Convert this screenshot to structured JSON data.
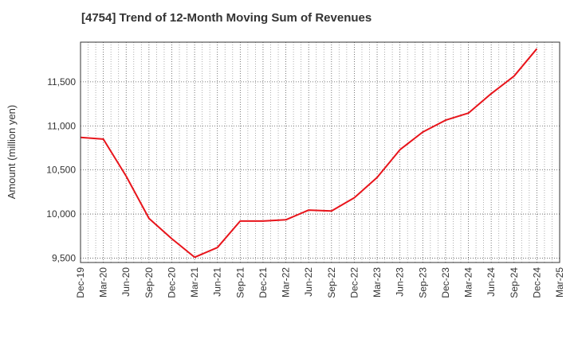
{
  "chart_data": {
    "type": "line",
    "title": "[4754]  Trend of 12-Month Moving Sum of Revenues",
    "ylabel": "Amount (million yen)",
    "xlabel": "",
    "x_ticks": [
      "Dec-19",
      "Mar-20",
      "Jun-20",
      "Sep-20",
      "Dec-20",
      "Mar-21",
      "Jun-21",
      "Sep-21",
      "Dec-21",
      "Mar-22",
      "Jun-22",
      "Sep-22",
      "Dec-22",
      "Mar-23",
      "Jun-23",
      "Sep-23",
      "Dec-23",
      "Mar-24",
      "Jun-24",
      "Sep-24",
      "Dec-24",
      "Mar-25"
    ],
    "y_ticks": [
      9500,
      10000,
      10500,
      11000,
      11500
    ],
    "y_tick_labels": [
      "9,500",
      "10,000",
      "10,500",
      "11,000",
      "11,500"
    ],
    "ylim": [
      9450,
      11950
    ],
    "grid": true,
    "line_color": "#e8141b",
    "series": [
      {
        "x": [
          "Dec-19",
          "Mar-20",
          "Jun-20",
          "Sep-20",
          "Dec-20",
          "Mar-21",
          "Jun-21",
          "Sep-21",
          "Dec-21",
          "Mar-22",
          "Jun-22",
          "Sep-22",
          "Dec-22",
          "Mar-23",
          "Jun-23",
          "Sep-23",
          "Dec-23",
          "Mar-24",
          "Jun-24",
          "Sep-24",
          "Dec-24"
        ],
        "values": [
          10870,
          10850,
          10430,
          9950,
          9720,
          9510,
          9620,
          9920,
          9920,
          9935,
          10045,
          10035,
          10185,
          10415,
          10730,
          10930,
          11065,
          11145,
          11365,
          11565,
          11875
        ]
      }
    ]
  }
}
